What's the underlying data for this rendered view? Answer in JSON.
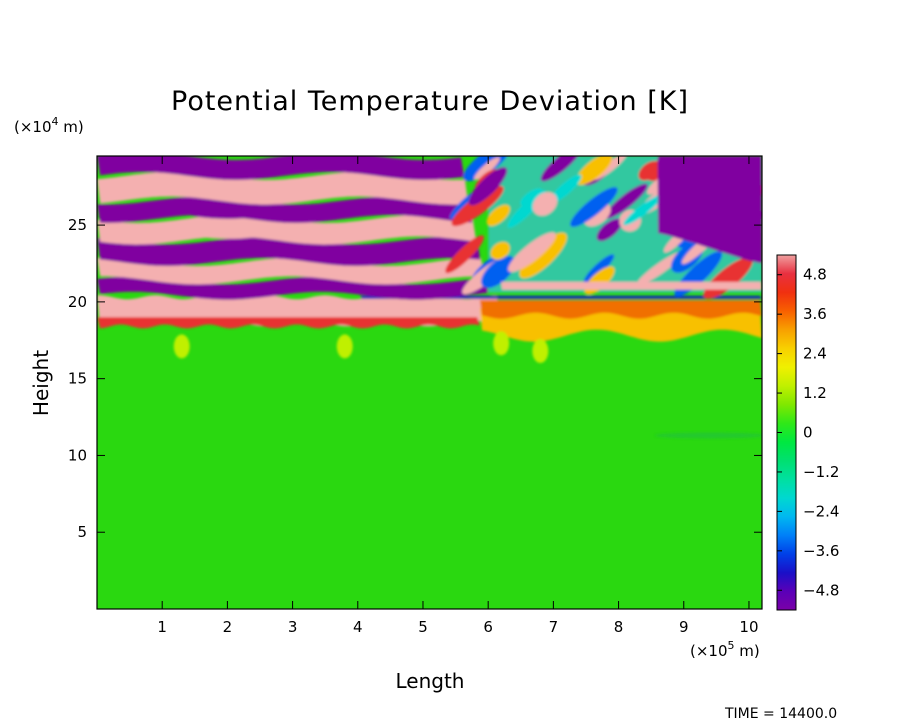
{
  "chart_data": {
    "type": "heatmap",
    "title": "Potential Temperature Deviation [K]",
    "xlabel": "Length",
    "ylabel": "Height",
    "x_unit": {
      "prefix": "(×10",
      "exp": "5",
      "suffix": " m)"
    },
    "y_unit": {
      "prefix": "(×10",
      "exp": "4",
      "suffix": " m)"
    },
    "xlim": [
      0,
      10.2
    ],
    "ylim": [
      0,
      29.5
    ],
    "x_ticks": [
      1,
      2,
      3,
      4,
      5,
      6,
      7,
      8,
      9,
      10
    ],
    "y_ticks": [
      5,
      10,
      15,
      20,
      25
    ],
    "colorbar": {
      "range": [
        -5.4,
        5.4
      ],
      "tick_values": [
        4.8,
        3.6,
        2.4,
        1.2,
        0,
        -1.2,
        -2.4,
        -3.6,
        -4.8
      ],
      "tick_labels": [
        "4.8",
        "3.6",
        "2.4",
        "1.2",
        "0",
        "−1.2",
        "−2.4",
        "−3.6",
        "−4.8"
      ],
      "colors": [
        "#7a00a8",
        "#5a00b8",
        "#1a10c8",
        "#0040e8",
        "#0080f8",
        "#00b8f0",
        "#00d8d0",
        "#00e0a0",
        "#00e070",
        "#00e840",
        "#30e818",
        "#80e800",
        "#c0f000",
        "#f0f000",
        "#f8d000",
        "#f8a000",
        "#f86000",
        "#f03010",
        "#e83040",
        "#f0a0a0"
      ],
      "low_color": "#8000a0",
      "high_color": "#f4b0b0"
    },
    "field_description": "Layered wave pattern above ~18e4 m with alternating strong positive (pink) and strong negative (purple) bands; near-zero (green) field below; tilted gravity-wave streaks for x > 6e5 m.",
    "colors": {
      "background_field": "#2ad810",
      "positive_max": "#f4b0b0",
      "negative_max": "#8000a0"
    }
  },
  "footer": {
    "time_label": "TIME  =  14400.0"
  }
}
